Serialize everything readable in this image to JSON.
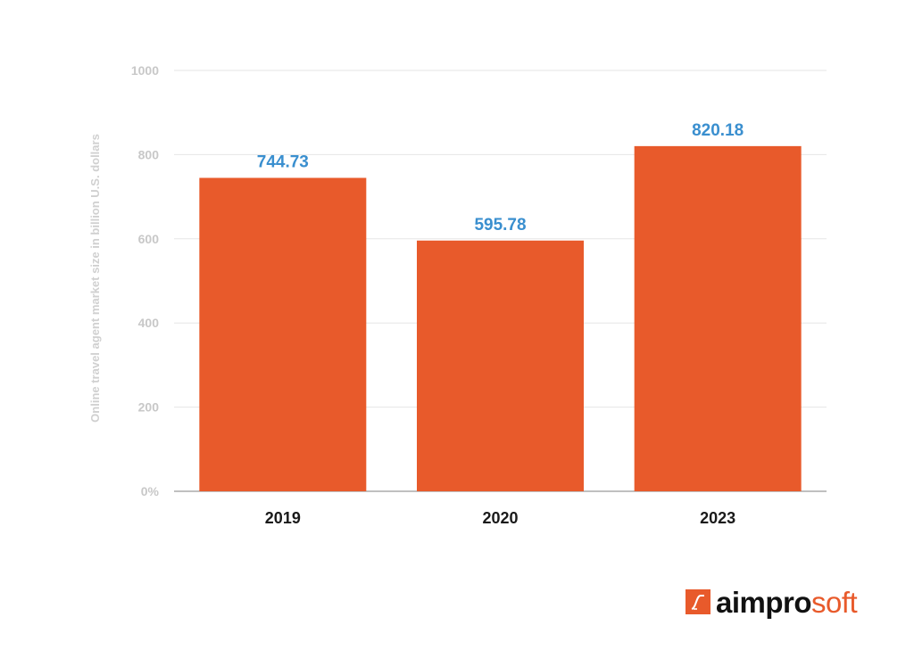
{
  "colors": {
    "bar": "#e85a2b",
    "value_label": "#3a8fcf",
    "grid": "#e6e6e6",
    "axis": "#9a9a9a"
  },
  "chart_data": {
    "type": "bar",
    "categories": [
      "2019",
      "2020",
      "2023"
    ],
    "values": [
      744.73,
      595.78,
      820.18
    ],
    "value_labels": [
      "744.73",
      "595.78",
      "820.18"
    ],
    "yticks": [
      "0%",
      "200",
      "400",
      "600",
      "800",
      "1000"
    ],
    "ylabel": "Online travel agent market size in billion U.S. dollars",
    "xlabel": "",
    "title": "",
    "ylim": [
      0,
      1000
    ],
    "grid": true,
    "legend": "none"
  },
  "logo": {
    "bold_text": "aimpro",
    "light_text": "soft",
    "icon": "aimprosoft-logo-icon"
  }
}
